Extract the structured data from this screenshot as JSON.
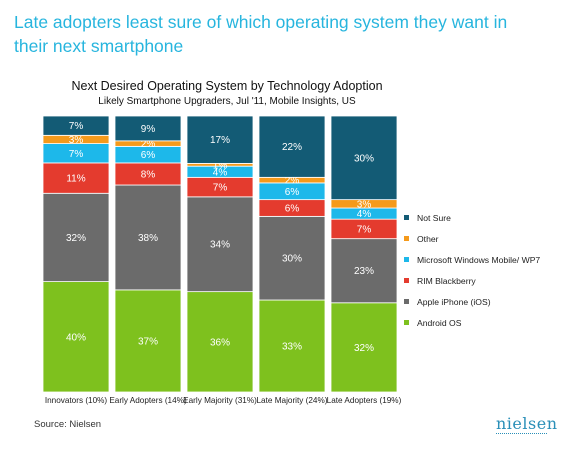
{
  "headline": "Late adopters least sure of which operating system they want in their next smartphone",
  "source": "Source: Nielsen",
  "logo": "nielsen",
  "chart_data": {
    "type": "bar",
    "stacked": true,
    "percent": true,
    "title": "Next Desired Operating System by Technology Adoption",
    "subtitle": "Likely Smartphone Upgraders, Jul '11, Mobile Insights, US",
    "categories": [
      "Innovators (10%)",
      "Early Adopters (14%)",
      "Early Majority (31%)",
      "Late Majority (24%)",
      "Late Adopters (19%)"
    ],
    "series": [
      {
        "name": "Android OS",
        "color": "#7ec11e",
        "values": [
          40,
          37,
          36,
          33,
          32
        ]
      },
      {
        "name": "Apple iPhone (iOS)",
        "color": "#6b6b6b",
        "values": [
          32,
          38,
          34,
          30,
          23
        ]
      },
      {
        "name": "RIM Blackberry",
        "color": "#e43b2e",
        "values": [
          11,
          8,
          7,
          6,
          7
        ]
      },
      {
        "name": "Microsoft Windows Mobile/ WP7",
        "color": "#1db8ea",
        "values": [
          7,
          6,
          4,
          6,
          4
        ]
      },
      {
        "name": "Other",
        "color": "#f59a1b",
        "values": [
          3,
          2,
          1,
          2,
          3
        ]
      },
      {
        "name": "Not Sure",
        "color": "#135b75",
        "values": [
          7,
          9,
          17,
          22,
          30
        ]
      }
    ],
    "legend_position": "right",
    "grid": false
  }
}
